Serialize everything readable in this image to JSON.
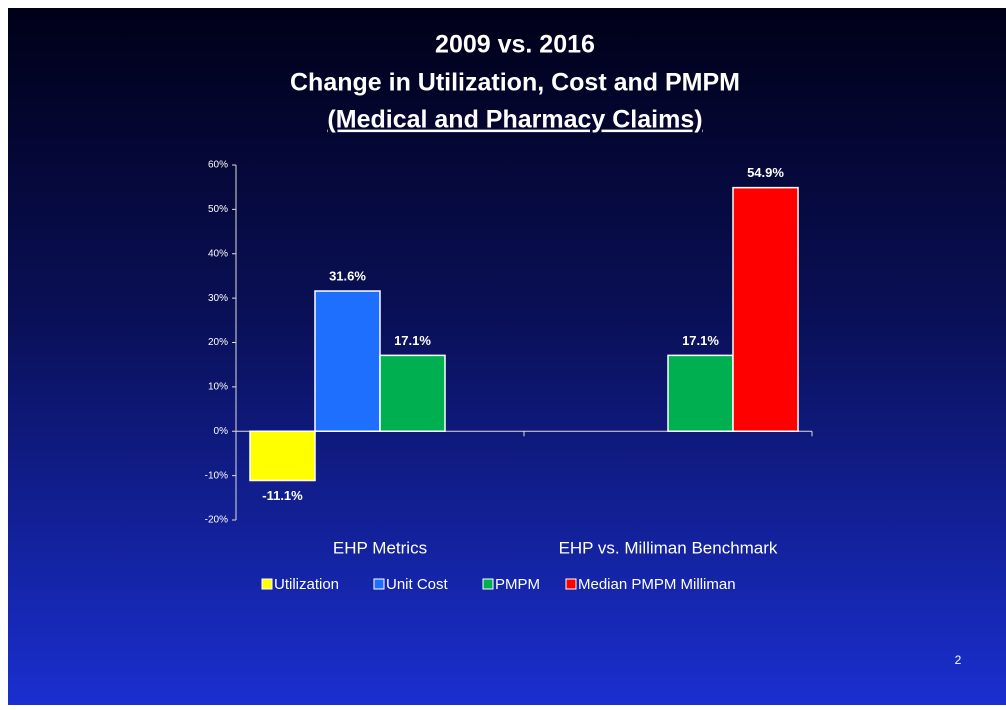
{
  "chart_data": {
    "type": "bar",
    "title": [
      "2009 vs. 2016",
      "Change in Utilization, Cost and PMPM",
      "(Medical and Pharmacy Claims)"
    ],
    "categories": [
      "EHP Metrics",
      "EHP vs. Milliman Benchmark"
    ],
    "series": [
      {
        "name": "Utilization",
        "color": "#ffff00",
        "values": [
          -11.1,
          null
        ],
        "value_labels": [
          "-11.1%",
          null
        ]
      },
      {
        "name": "Unit Cost",
        "color": "#1f6fff",
        "values": [
          31.6,
          null
        ],
        "value_labels": [
          "31.6%",
          null
        ]
      },
      {
        "name": "PMPM",
        "color": "#00b050",
        "values": [
          17.1,
          17.1
        ],
        "value_labels": [
          "17.1%",
          "17.1%"
        ]
      },
      {
        "name": "Median PMPM Milliman",
        "color": "#ff0000",
        "values": [
          null,
          54.9
        ],
        "value_labels": [
          null,
          "54.9%"
        ]
      }
    ],
    "ylim": [
      -20,
      60
    ],
    "yticks": [
      {
        "value": -20,
        "label": "-20%"
      },
      {
        "value": -10,
        "label": "-10%"
      },
      {
        "value": 0,
        "label": "0%"
      },
      {
        "value": 10,
        "label": "10%"
      },
      {
        "value": 20,
        "label": "20%"
      },
      {
        "value": 30,
        "label": "30%"
      },
      {
        "value": 40,
        "label": "40%"
      },
      {
        "value": 50,
        "label": "50%"
      },
      {
        "value": 60,
        "label": "60%"
      }
    ],
    "legend": "bottom"
  },
  "page_number": "2"
}
